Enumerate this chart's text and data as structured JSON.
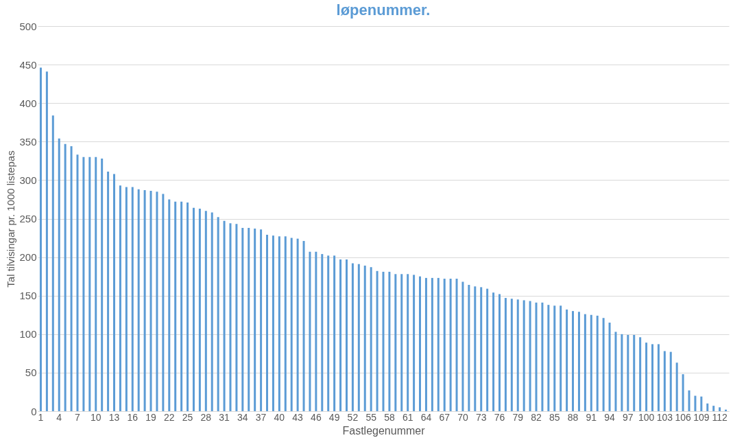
{
  "chart_data": {
    "type": "bar",
    "title": "løpenummer.",
    "xlabel": "Fastlegenummer",
    "ylabel": "Tal tilvisingar pr. 1000 listepas",
    "categories": [
      "1",
      null,
      null,
      "4",
      null,
      null,
      "7",
      null,
      null,
      "10",
      null,
      null,
      "13",
      null,
      null,
      "16",
      null,
      null,
      "19",
      null,
      null,
      "22",
      null,
      null,
      "25",
      null,
      null,
      "28",
      null,
      null,
      "31",
      null,
      null,
      "34",
      null,
      null,
      "37",
      null,
      null,
      "40",
      null,
      null,
      "43",
      null,
      null,
      "46",
      null,
      null,
      "49",
      null,
      null,
      "52",
      null,
      null,
      "55",
      null,
      null,
      "58",
      null,
      null,
      "61",
      null,
      null,
      "64",
      null,
      null,
      "67",
      null,
      null,
      "70",
      null,
      null,
      "73",
      null,
      null,
      "76",
      null,
      null,
      "79",
      null,
      null,
      "82",
      null,
      null,
      "85",
      null,
      null,
      "88",
      null,
      null,
      "91",
      null,
      null,
      "94",
      null,
      null,
      "97",
      null,
      null,
      "100",
      null,
      null,
      "103",
      null,
      null,
      "106",
      null,
      null,
      "109",
      null,
      null,
      "112",
      null
    ],
    "values": [
      446,
      441,
      384,
      354,
      347,
      344,
      333,
      330,
      330,
      330,
      328,
      311,
      308,
      293,
      291,
      291,
      288,
      287,
      286,
      285,
      282,
      275,
      272,
      272,
      271,
      264,
      263,
      260,
      258,
      252,
      247,
      244,
      243,
      238,
      238,
      237,
      236,
      229,
      228,
      227,
      227,
      225,
      224,
      221,
      207,
      207,
      204,
      202,
      202,
      197,
      197,
      192,
      191,
      189,
      187,
      182,
      181,
      181,
      178,
      178,
      178,
      177,
      175,
      173,
      173,
      173,
      172,
      172,
      172,
      168,
      164,
      162,
      161,
      159,
      154,
      152,
      147,
      146,
      145,
      144,
      143,
      141,
      141,
      138,
      137,
      137,
      132,
      130,
      129,
      126,
      125,
      124,
      121,
      115,
      103,
      100,
      99,
      99,
      96,
      89,
      87,
      87,
      78,
      77,
      63,
      48,
      27,
      20,
      19,
      10,
      7,
      5,
      2
    ],
    "color": "#5b9bd5",
    "ylim": [
      0,
      500
    ],
    "yticks": [
      0,
      50,
      100,
      150,
      200,
      250,
      300,
      350,
      400,
      450,
      500
    ],
    "grid": "y"
  }
}
